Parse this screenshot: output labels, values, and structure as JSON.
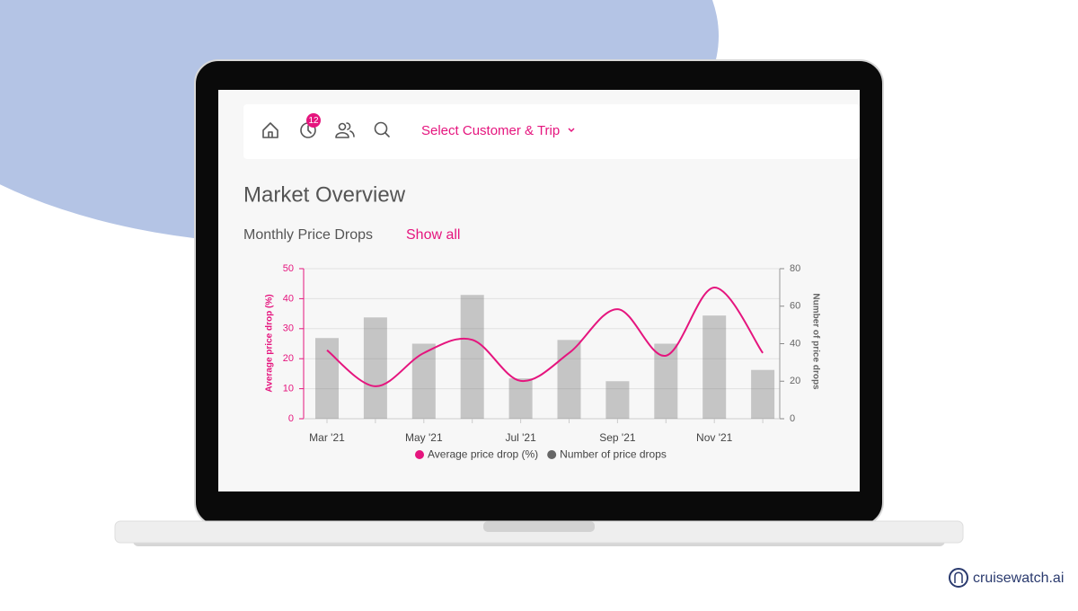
{
  "nav": {
    "badge": "12",
    "selector": "Select Customer & Trip"
  },
  "heading": "Market Overview",
  "section": {
    "title": "Monthly Price Drops",
    "link": "Show all"
  },
  "chart_data": {
    "type": "bar-line",
    "categories": [
      "Mar '21",
      null,
      "May '21",
      null,
      "Jul '21",
      null,
      "Sep '21",
      null,
      "Nov '21",
      null
    ],
    "series": [
      {
        "name": "Average price drop (%)",
        "color": "#e5157e",
        "kind": "line",
        "axis": "y",
        "values": [
          22.8,
          10.8,
          21.9,
          26.3,
          12.6,
          21.9,
          36.5,
          21,
          43.7,
          21.9
        ]
      },
      {
        "name": "Number of price drops",
        "color": "#666666",
        "kind": "bar",
        "axis": "y2",
        "values": [
          43,
          54,
          40,
          66,
          21.5,
          42,
          20,
          40,
          55,
          26
        ]
      }
    ],
    "ylabel": "Average price drop (%)",
    "y2label": "Number of price drops",
    "ylim": [
      0,
      50
    ],
    "yticks": [
      0,
      10,
      20,
      30,
      40,
      50
    ],
    "y2lim": [
      0,
      80
    ],
    "y2ticks": [
      0,
      20,
      40,
      60,
      80
    ],
    "grid": true,
    "legend": "bottom"
  },
  "brand": "cruisewatch.ai"
}
